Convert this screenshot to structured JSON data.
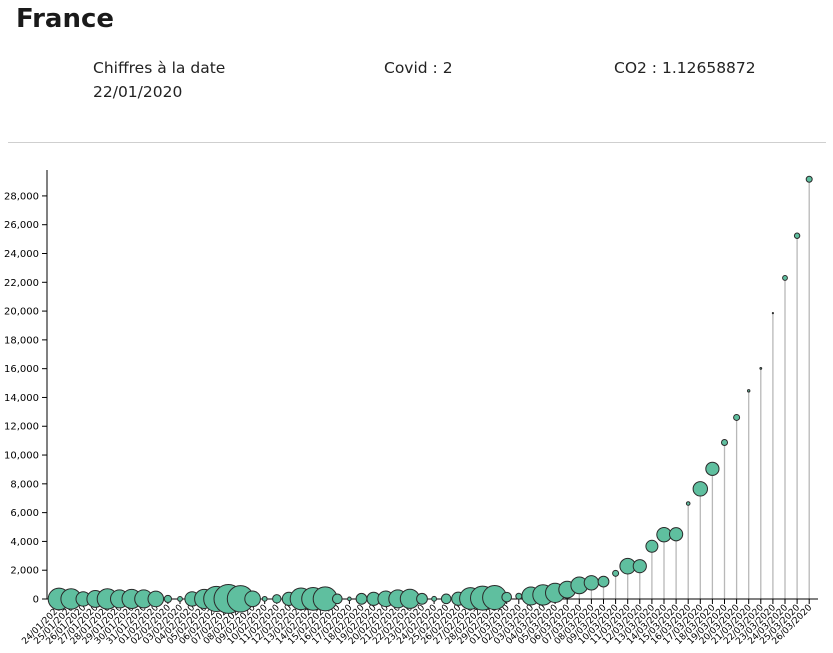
{
  "country": "France",
  "info": {
    "date_label": "Chiffres à la date",
    "date_value": "22/01/2020",
    "covid": "Covid : 2",
    "co2": "CO2 : 1.12658872"
  },
  "colors": {
    "bubble_fill": "#5fbf9f",
    "bubble_stroke": "#2a2a2a",
    "stem": "#b8b8b8",
    "axis": "#000000"
  },
  "chart_data": {
    "type": "scatter",
    "title": "",
    "xlabel": "",
    "ylabel": "",
    "ylim": [
      0,
      29800
    ],
    "y_ticks": [
      0,
      2000,
      4000,
      6000,
      8000,
      10000,
      12000,
      14000,
      16000,
      18000,
      20000,
      22000,
      24000,
      26000,
      28000
    ],
    "y_tick_labels": [
      "0",
      "2,000",
      "4,000",
      "6,000",
      "8,000",
      "10,000",
      "12,000",
      "14,000",
      "16,000",
      "18,000",
      "20,000",
      "22,000",
      "24,000",
      "26,000",
      "28,000"
    ],
    "x": [
      "24/01/2020",
      "25/01/2020",
      "26/01/2020",
      "27/01/2020",
      "28/01/2020",
      "29/01/2020",
      "30/01/2020",
      "31/01/2020",
      "01/02/2020",
      "02/02/2020",
      "03/02/2020",
      "04/02/2020",
      "05/02/2020",
      "06/02/2020",
      "07/02/2020",
      "08/02/2020",
      "09/02/2020",
      "10/02/2020",
      "11/02/2020",
      "12/02/2020",
      "13/02/2020",
      "14/02/2020",
      "15/02/2020",
      "16/02/2020",
      "17/02/2020",
      "18/02/2020",
      "19/02/2020",
      "20/02/2020",
      "21/02/2020",
      "22/02/2020",
      "23/02/2020",
      "24/02/2020",
      "25/02/2020",
      "26/02/2020",
      "27/02/2020",
      "28/02/2020",
      "29/02/2020",
      "01/03/2020",
      "02/03/2020",
      "03/03/2020",
      "04/03/2020",
      "05/03/2020",
      "06/03/2020",
      "07/03/2020",
      "08/03/2020",
      "09/03/2020",
      "10/03/2020",
      "11/03/2020",
      "12/03/2020",
      "13/03/2020",
      "14/03/2020",
      "15/03/2020",
      "16/03/2020",
      "17/03/2020",
      "18/03/2020",
      "19/03/2020",
      "20/03/2020",
      "21/03/2020",
      "22/03/2020",
      "23/03/2020",
      "24/03/2020",
      "25/03/2020",
      "26/03/2020"
    ],
    "covid": [
      3,
      3,
      3,
      3,
      4,
      5,
      5,
      6,
      6,
      6,
      6,
      6,
      6,
      6,
      6,
      11,
      11,
      11,
      11,
      11,
      11,
      11,
      11,
      12,
      12,
      12,
      12,
      12,
      12,
      12,
      12,
      12,
      12,
      18,
      38,
      57,
      100,
      130,
      191,
      212,
      285,
      423,
      653,
      949,
      1126,
      1209,
      1784,
      2281,
      2281,
      3661,
      4469,
      4499,
      6633,
      7652,
      9043,
      10871,
      12612,
      14459,
      16018,
      19856,
      22302,
      25233,
      29155
    ],
    "co2": [
      1.8,
      1.7,
      1.2,
      1.4,
      1.7,
      1.5,
      1.6,
      1.5,
      1.3,
      0.6,
      0.4,
      1.2,
      1.6,
      2.1,
      2.4,
      2.2,
      1.3,
      0.4,
      0.7,
      1.1,
      1.8,
      1.9,
      2.0,
      0.8,
      0.3,
      0.9,
      1.1,
      1.3,
      1.5,
      1.6,
      0.9,
      0.4,
      0.8,
      1.1,
      1.8,
      2.0,
      2.0,
      0.8,
      0.5,
      1.5,
      1.7,
      1.6,
      1.4,
      1.4,
      1.2,
      0.9,
      0.5,
      1.3,
      1.1,
      1.0,
      1.2,
      1.1,
      0.3,
      1.2,
      1.1,
      0.5,
      0.5,
      0.2,
      0.15,
      0.1,
      0.4,
      0.45,
      0.5
    ]
  }
}
